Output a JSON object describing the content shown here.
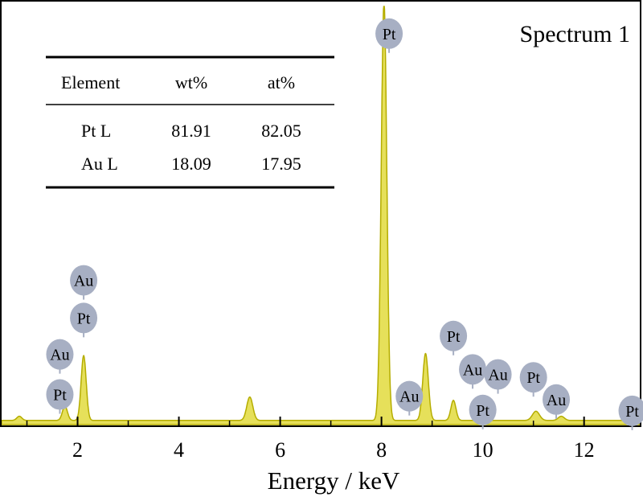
{
  "chart_data": {
    "type": "area",
    "title": "Spectrum 1",
    "xlabel": "Energy / keV",
    "ylabel": "",
    "xlim": [
      0.5,
      13.1
    ],
    "ylim": [
      0,
      100
    ],
    "x_ticks": [
      2,
      4,
      6,
      8,
      10,
      12
    ],
    "grid": false,
    "fill_color": "#e6e05a",
    "stroke_color": "#b5ad00",
    "label_bubble_color": "#a7afc3",
    "peaks": [
      {
        "x": 0.85,
        "y": 1.0,
        "w": 0.05
      },
      {
        "x": 1.75,
        "y": 3.4,
        "w": 0.05
      },
      {
        "x": 2.12,
        "y": 15.5,
        "w": 0.05
      },
      {
        "x": 5.4,
        "y": 5.6,
        "w": 0.06
      },
      {
        "x": 8.05,
        "y": 100,
        "w": 0.055
      },
      {
        "x": 8.87,
        "y": 16.0,
        "w": 0.055
      },
      {
        "x": 9.42,
        "y": 4.8,
        "w": 0.05
      },
      {
        "x": 11.05,
        "y": 2.2,
        "w": 0.07
      },
      {
        "x": 11.55,
        "y": 1.0,
        "w": 0.06
      }
    ],
    "baseline": 1.0,
    "peak_labels": [
      {
        "text": "Au",
        "x": 2.12,
        "y": 34.5
      },
      {
        "text": "Pt",
        "x": 2.12,
        "y": 25.5
      },
      {
        "text": "Au",
        "x": 1.65,
        "y": 16.8
      },
      {
        "text": "Pt",
        "x": 1.65,
        "y": 7.2
      },
      {
        "text": "Pt",
        "x": 8.15,
        "y": 93.5
      },
      {
        "text": "Au",
        "x": 8.55,
        "y": 6.8
      },
      {
        "text": "Pt",
        "x": 9.42,
        "y": 21.2
      },
      {
        "text": "Au",
        "x": 9.8,
        "y": 13.2
      },
      {
        "text": "Au",
        "x": 10.3,
        "y": 12.0
      },
      {
        "text": "Pt",
        "x": 10.0,
        "y": 3.5
      },
      {
        "text": "Pt",
        "x": 11.0,
        "y": 11.3
      },
      {
        "text": "Au",
        "x": 11.45,
        "y": 6.0
      },
      {
        "text": "Pt",
        "x": 12.95,
        "y": 3.3
      }
    ]
  },
  "table": {
    "headers": [
      "Element",
      "wt%",
      "at%"
    ],
    "rows": [
      [
        "Pt L",
        "81.91",
        "82.05"
      ],
      [
        "Au L",
        "18.09",
        "17.95"
      ]
    ]
  }
}
